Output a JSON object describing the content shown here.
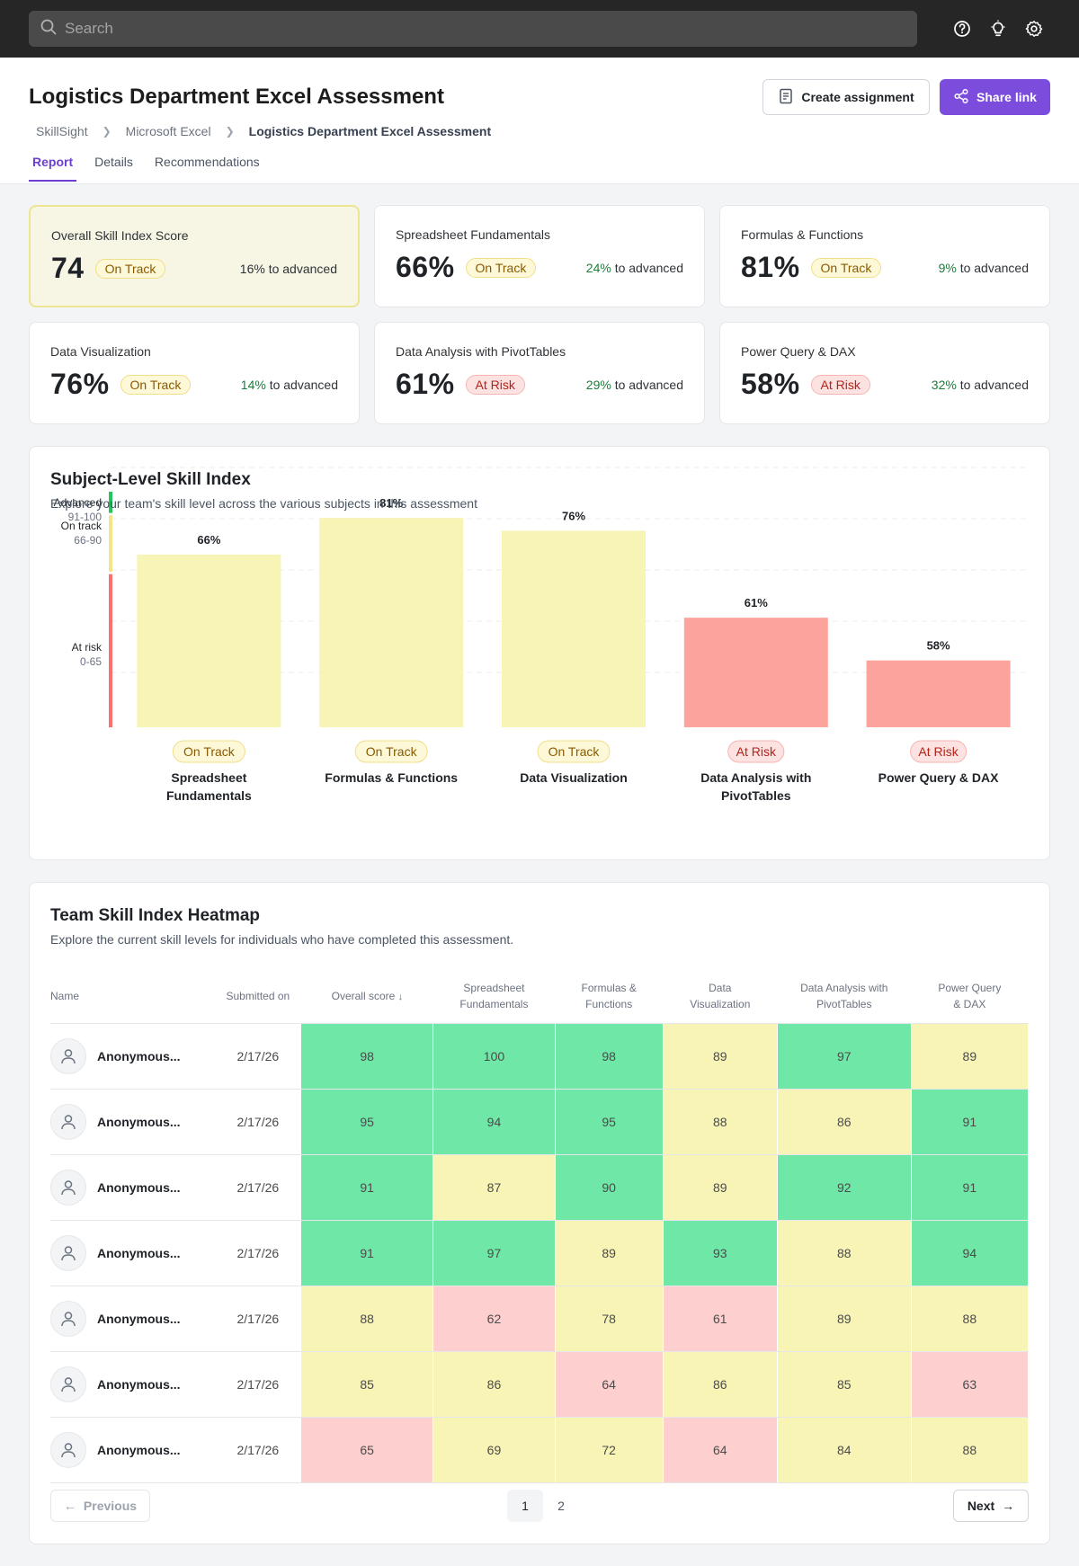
{
  "topbar": {
    "search_placeholder": "Search",
    "icons": [
      "help-icon",
      "lightbulb-icon",
      "gear-icon"
    ]
  },
  "header": {
    "title": "Logistics Department Excel Assessment",
    "breadcrumb": [
      "SkillSight",
      "Microsoft Excel",
      "Logistics Department Excel Assessment"
    ],
    "tabs": [
      {
        "label": "Report",
        "active": true
      },
      {
        "label": "Details"
      },
      {
        "label": "Recommendations"
      }
    ],
    "create_label": "Create assignment",
    "share_label": "Share link"
  },
  "cards": [
    {
      "title": "Overall Skill Index Score",
      "value": "74",
      "status": "On Track",
      "pct": "16%",
      "adv": "to advanced"
    },
    {
      "title": "Spreadsheet Fundamentals",
      "value": "66%",
      "status": "On Track",
      "pct": "24%",
      "adv": "to advanced"
    },
    {
      "title": "Formulas & Functions",
      "value": "81%",
      "status": "On Track",
      "pct": "9%",
      "adv": "to advanced"
    },
    {
      "title": "Data Visualization",
      "value": "76%",
      "status": "On Track",
      "pct": "14%",
      "adv": "to advanced"
    },
    {
      "title": "Data Analysis with PivotTables",
      "value": "61%",
      "status": "At Risk",
      "pct": "29%",
      "adv": "to advanced"
    },
    {
      "title": "Power Query & DAX",
      "value": "58%",
      "status": "At Risk",
      "pct": "32%",
      "adv": "to advanced"
    }
  ],
  "chart_panel": {
    "title": "Subject-Level Skill Index",
    "subtitle": "Explore your team's skill level across the various subjects in this assessment"
  },
  "chart_data": {
    "type": "bar",
    "categories": [
      "Spreadsheet Fundamentals",
      "Formulas & Functions",
      "Data Visualization",
      "Data Analysis with PivotTables",
      "Power Query & DAX"
    ],
    "category_lines": [
      [
        "Spreadsheet",
        "Fundamentals"
      ],
      [
        "Formulas & Functions"
      ],
      [
        "Data Visualization"
      ],
      [
        "Data Analysis with",
        "PivotTables"
      ],
      [
        "Power Query & DAX"
      ]
    ],
    "values": [
      66,
      81,
      76,
      61,
      58
    ],
    "value_labels": [
      "66%",
      "81%",
      "76%",
      "61%",
      "58%"
    ],
    "status": [
      "On Track",
      "On Track",
      "On Track",
      "At Risk",
      "At Risk"
    ],
    "ylim": [
      0,
      100
    ],
    "bands": [
      {
        "name": "Advanced",
        "range": "91-100",
        "from": 91,
        "to": 100,
        "color": "#22c55e"
      },
      {
        "name": "On track",
        "range": "66-90",
        "from": 66,
        "to": 90,
        "color": "#f2e68a"
      },
      {
        "name": "At risk",
        "range": "0-65",
        "from": 0,
        "to": 65,
        "color": "#f87171"
      }
    ],
    "colors": {
      "on_track": "#f7f4b5",
      "at_risk": "#fba39c"
    }
  },
  "heatmap": {
    "title": "Team Skill Index Heatmap",
    "subtitle": "Explore the current skill levels for individuals who have completed this assessment.",
    "columns": [
      "Name",
      "Submitted on",
      "Overall score",
      "Spreadsheet Fundamentals",
      "Formulas & Functions",
      "Data Visualization",
      "Data Analysis with PivotTables",
      "Power Query & DAX"
    ],
    "rows": [
      {
        "name": "Anonymous...",
        "date": "2/17/26",
        "scores": [
          98,
          100,
          98,
          89,
          97,
          89
        ]
      },
      {
        "name": "Anonymous...",
        "date": "2/17/26",
        "scores": [
          95,
          94,
          95,
          88,
          86,
          91
        ]
      },
      {
        "name": "Anonymous...",
        "date": "2/17/26",
        "scores": [
          91,
          87,
          90,
          89,
          92,
          91
        ]
      },
      {
        "name": "Anonymous...",
        "date": "2/17/26",
        "scores": [
          91,
          97,
          89,
          93,
          88,
          94
        ]
      },
      {
        "name": "Anonymous...",
        "date": "2/17/26",
        "scores": [
          88,
          62,
          78,
          61,
          89,
          88
        ]
      },
      {
        "name": "Anonymous...",
        "date": "2/17/26",
        "scores": [
          85,
          86,
          64,
          86,
          85,
          63
        ]
      },
      {
        "name": "Anonymous...",
        "date": "2/17/26",
        "scores": [
          65,
          69,
          72,
          64,
          84,
          88
        ]
      }
    ],
    "pagination": {
      "prev_label": "Previous",
      "next_label": "Next",
      "pages": [
        "1",
        "2"
      ],
      "current": "1"
    }
  }
}
